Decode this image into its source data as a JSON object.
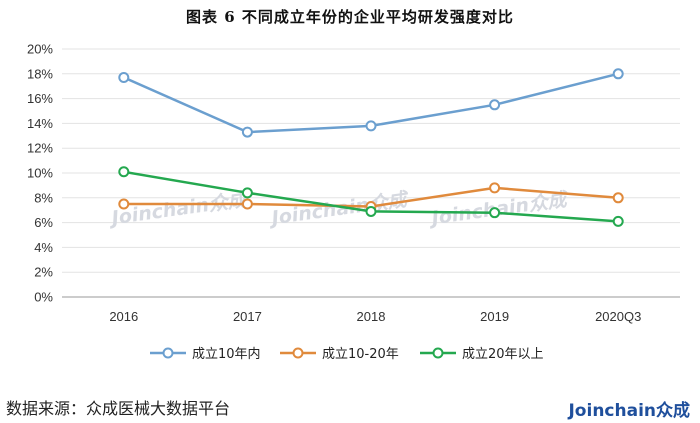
{
  "chart_data": {
    "type": "line",
    "title": "图表 6 不同成立年份的企业平均研发强度对比",
    "categories": [
      "2016",
      "2017",
      "2018",
      "2019",
      "2020Q3"
    ],
    "y_ticks": [
      "0%",
      "2%",
      "4%",
      "6%",
      "8%",
      "10%",
      "12%",
      "14%",
      "16%",
      "18%",
      "20%"
    ],
    "ylim": [
      0,
      20
    ],
    "y_unit": "%",
    "grid": true,
    "legend_position": "bottom",
    "series": [
      {
        "name": "成立10年内",
        "color": "#6b9fcf",
        "values": [
          17.7,
          13.3,
          13.8,
          15.5,
          18.0
        ]
      },
      {
        "name": "成立10-20年",
        "color": "#e08a3c",
        "values": [
          7.5,
          7.5,
          7.3,
          8.8,
          8.0
        ]
      },
      {
        "name": "成立20年以上",
        "color": "#24a84f",
        "values": [
          10.1,
          8.4,
          6.9,
          6.8,
          6.1
        ]
      }
    ],
    "watermark": "Joinchain众成"
  },
  "footer": {
    "source": "数据来源：众成医械大数据平台",
    "logo": "Joinchain众成"
  }
}
